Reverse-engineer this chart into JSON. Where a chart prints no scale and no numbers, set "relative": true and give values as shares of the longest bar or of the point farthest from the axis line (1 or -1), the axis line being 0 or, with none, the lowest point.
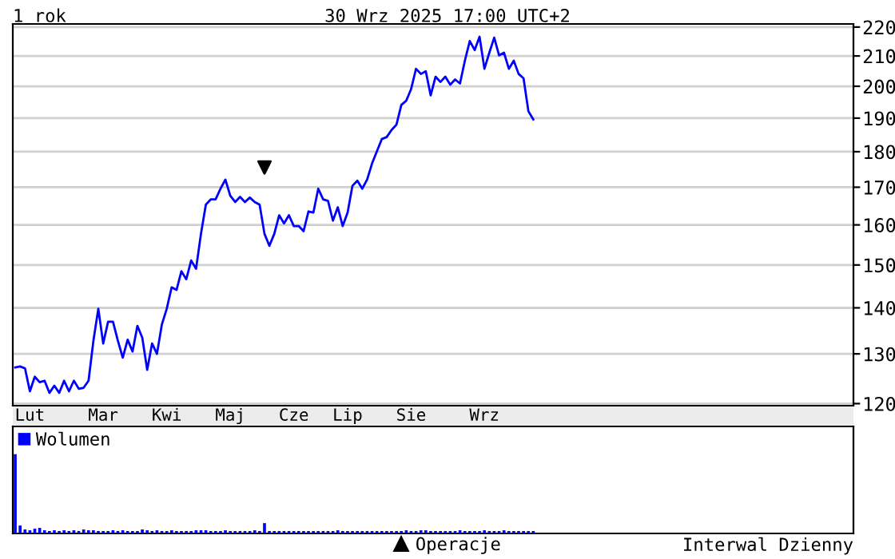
{
  "chart_data": [
    {
      "type": "line",
      "title": "1 rok",
      "subtitle": "30 Wrz 2025 17:00 UTC+2",
      "categories": [
        null,
        null,
        null,
        "Lut",
        null,
        null,
        null,
        null,
        null,
        null,
        null,
        null,
        null,
        null,
        null,
        null,
        null,
        null,
        "Mar",
        null,
        null,
        null,
        null,
        null,
        null,
        null,
        null,
        null,
        null,
        null,
        null,
        "Kwi",
        null,
        null,
        null,
        null,
        null,
        null,
        null,
        null,
        null,
        null,
        null,
        null,
        "Maj",
        null,
        null,
        null,
        null,
        null,
        null,
        null,
        null,
        null,
        null,
        null,
        null,
        "Cze",
        null,
        null,
        null,
        null,
        null,
        null,
        null,
        null,
        null,
        null,
        "Lip",
        null,
        null,
        null,
        null,
        null,
        null,
        null,
        null,
        null,
        null,
        null,
        null,
        "Sie",
        null,
        null,
        null,
        null,
        null,
        null,
        null,
        null,
        null,
        null,
        null,
        null,
        null,
        null,
        "Wrz",
        null,
        null,
        null,
        null,
        null,
        null,
        null,
        null,
        null,
        null,
        null,
        null,
        null,
        null,
        null,
        null,
        null,
        null,
        null,
        null,
        null,
        null,
        null,
        null,
        null,
        null,
        null,
        null,
        null,
        null,
        null,
        null,
        null,
        null,
        null,
        null,
        null,
        null,
        null,
        null,
        null,
        null,
        null,
        null,
        null,
        null,
        null,
        null,
        null,
        null,
        null,
        null,
        null,
        null,
        null,
        null,
        null,
        null,
        null,
        null,
        null,
        null,
        null,
        null,
        null,
        null,
        null,
        null,
        null,
        null,
        null,
        null,
        null,
        null,
        null
      ],
      "series": [
        {
          "color": "#0000ff",
          "values": [
            127.2,
            127.4,
            127.0,
            122.4,
            125.3,
            124.2,
            124.5,
            122.1,
            123.5,
            122.1,
            124.5,
            122.4,
            124.5,
            122.9,
            123.1,
            124.5,
            132.8,
            139.8,
            132.2,
            136.9,
            136.9,
            132.8,
            129.2,
            133.0,
            130.5,
            136.0,
            133.4,
            126.7,
            132.2,
            130.0,
            136.3,
            139.8,
            144.7,
            144.1,
            148.5,
            146.6,
            151.1,
            149.1,
            157.7,
            165.3,
            166.7,
            166.7,
            169.6,
            172.1,
            167.7,
            166.0,
            167.4,
            166.0,
            167.2,
            166.0,
            165.3,
            157.7,
            154.7,
            157.7,
            162.5,
            160.4,
            162.5,
            159.7,
            159.7,
            158.4,
            163.5,
            163.2,
            169.6,
            166.7,
            166.3,
            161.1,
            164.6,
            159.7,
            163.2,
            170.4,
            171.8,
            169.6,
            172.1,
            176.6,
            180.1,
            183.7,
            184.3,
            186.4,
            188.0,
            194.1,
            195.4,
            199.1,
            205.7,
            204.0,
            204.9,
            197.1,
            203.1,
            201.4,
            203.1,
            200.5,
            202.2,
            200.9,
            208.4,
            215.1,
            212.0,
            216.6,
            205.7,
            211.1,
            216.3,
            210.2,
            211.1,
            205.7,
            208.4,
            204.0,
            202.6,
            192.1,
            189.6,
            null,
            null,
            null,
            null,
            null,
            null,
            null,
            null,
            null,
            null,
            null,
            null,
            null,
            null,
            null,
            null,
            null,
            null,
            null,
            null,
            null,
            null,
            null,
            null,
            null,
            null,
            null,
            null,
            null,
            null,
            null,
            null,
            null,
            null,
            null,
            null,
            null,
            null,
            null,
            null,
            null,
            null,
            null,
            null,
            null,
            null,
            null,
            null,
            null,
            null,
            null,
            null,
            null,
            null,
            null,
            null,
            null,
            null,
            null,
            null,
            null,
            null,
            null,
            null,
            null
          ]
        },
        {
          "type": "scatter",
          "name": "Operacje",
          "color": "#000000",
          "marker": "triangle",
          "values": [
            null,
            null,
            null,
            null,
            null,
            null,
            null,
            null,
            null,
            null,
            null,
            null,
            null,
            null,
            null,
            null,
            null,
            null,
            null,
            null,
            null,
            null,
            null,
            null,
            null,
            null,
            null,
            null,
            null,
            null,
            null,
            null,
            null,
            null,
            null,
            null,
            null,
            null,
            null,
            null,
            null,
            null,
            null,
            null,
            null,
            null,
            null,
            null,
            null,
            null,
            null,
            175.5,
            null,
            null,
            null,
            null,
            null,
            null,
            null,
            null,
            null,
            null,
            null,
            null,
            null,
            null,
            null,
            null,
            null,
            null,
            null,
            null,
            null,
            null,
            null,
            null,
            null,
            null,
            null,
            null,
            null,
            null,
            null,
            null,
            null,
            null,
            null,
            null,
            null,
            null,
            null,
            null,
            null,
            null,
            null,
            null,
            null,
            null,
            null,
            null,
            null,
            null,
            null,
            null,
            null,
            null,
            null,
            null,
            null,
            null,
            null,
            null,
            null,
            null,
            null,
            null,
            null,
            null,
            null,
            null,
            null,
            null,
            null,
            null,
            null,
            null,
            null,
            null,
            null,
            null,
            null,
            null,
            null,
            null,
            null,
            null,
            null,
            null,
            null,
            null,
            null,
            null,
            null,
            null,
            null,
            null,
            null,
            null,
            null,
            null,
            null,
            null,
            null,
            null,
            null,
            null,
            null,
            null,
            null,
            null,
            null,
            null,
            null,
            null,
            null,
            null,
            null,
            null,
            null,
            null,
            null,
            null
          ]
        }
      ],
      "ylim": [
        119.6,
        221.1
      ],
      "yticks": [
        120,
        130,
        140,
        150,
        160,
        170,
        180,
        190,
        200,
        210,
        220
      ],
      "log": "y",
      "grid": "y",
      "legend": "bottom",
      "line_style": "solid",
      "annotations": [
        "Interwal Dzienny"
      ]
    },
    {
      "type": "bar",
      "relative": true,
      "legend": "top left",
      "categories": [
        null,
        null,
        null,
        null,
        null,
        null,
        null,
        null,
        null,
        null,
        null,
        null,
        null,
        null,
        null,
        null,
        null,
        null,
        null,
        null,
        null,
        null,
        null,
        null,
        null,
        null,
        null,
        null,
        null,
        null,
        null,
        null,
        null,
        null,
        null,
        null,
        null,
        null,
        null,
        null,
        null,
        null,
        null,
        null,
        null,
        null,
        null,
        null,
        null,
        null,
        null,
        null,
        null,
        null,
        null,
        null,
        null,
        null,
        null,
        null,
        null,
        null,
        null,
        null,
        null,
        null,
        null,
        null,
        null,
        null,
        null,
        null,
        null,
        null,
        null,
        null,
        null,
        null,
        null,
        null,
        null,
        null,
        null,
        null,
        null,
        null,
        null,
        null,
        null,
        null,
        null,
        null,
        null,
        null,
        null,
        null,
        null,
        null,
        null,
        null,
        null,
        null,
        null,
        null,
        null,
        null,
        null,
        null,
        null,
        null,
        null,
        null,
        null,
        null,
        null,
        null,
        null,
        null,
        null,
        null,
        null,
        null,
        null,
        null,
        null,
        null,
        null,
        null,
        null,
        null,
        null,
        null,
        null,
        null,
        null,
        null,
        null,
        null,
        null,
        null,
        null,
        null,
        null,
        null,
        null,
        null,
        null,
        null,
        null,
        null,
        null,
        null,
        null,
        null,
        null,
        null,
        null,
        null,
        null,
        null,
        null,
        null,
        null,
        null,
        null,
        null,
        null,
        null,
        null,
        null,
        null,
        null
      ],
      "series": [
        {
          "name": "Wolumen",
          "color": "#0000ff",
          "values": [
            1.0,
            0.1,
            0.05,
            0.04,
            0.06,
            0.07,
            0.04,
            0.03,
            0.04,
            0.03,
            0.04,
            0.03,
            0.04,
            0.03,
            0.05,
            0.04,
            0.04,
            0.03,
            0.03,
            0.03,
            0.04,
            0.03,
            0.04,
            0.03,
            0.03,
            0.03,
            0.05,
            0.04,
            0.03,
            0.04,
            0.03,
            0.03,
            0.04,
            0.03,
            0.03,
            0.03,
            0.03,
            0.04,
            0.04,
            0.04,
            0.03,
            0.03,
            0.03,
            0.04,
            0.03,
            0.03,
            0.03,
            0.03,
            0.03,
            0.04,
            0.03,
            0.13,
            0.03,
            0.03,
            0.03,
            0.03,
            0.03,
            0.03,
            0.03,
            0.03,
            0.03,
            0.03,
            0.03,
            0.03,
            0.03,
            0.03,
            0.04,
            0.03,
            0.03,
            0.03,
            0.03,
            0.03,
            0.03,
            0.03,
            0.03,
            0.03,
            0.03,
            0.03,
            0.03,
            0.03,
            0.04,
            0.03,
            0.03,
            0.04,
            0.04,
            0.03,
            0.03,
            0.03,
            0.03,
            0.03,
            0.03,
            0.04,
            0.03,
            0.03,
            0.03,
            0.03,
            0.04,
            0.03,
            0.03,
            0.03,
            0.04,
            0.03,
            0.03,
            0.03,
            0.03,
            0.03,
            0.03,
            null,
            null,
            null,
            null,
            null,
            null,
            null,
            null,
            null,
            null,
            null,
            null,
            null,
            null,
            null,
            null,
            null,
            null,
            null,
            null,
            null,
            null,
            null,
            null,
            null,
            null,
            null,
            null,
            null,
            null,
            null,
            null,
            null,
            null,
            null,
            null,
            null,
            null,
            null,
            null,
            null,
            null,
            null,
            null,
            null,
            null,
            null,
            null,
            null,
            null,
            null,
            null,
            null,
            null,
            null,
            null,
            null,
            null,
            null,
            null,
            null,
            null,
            null,
            null,
            null
          ]
        }
      ]
    }
  ]
}
